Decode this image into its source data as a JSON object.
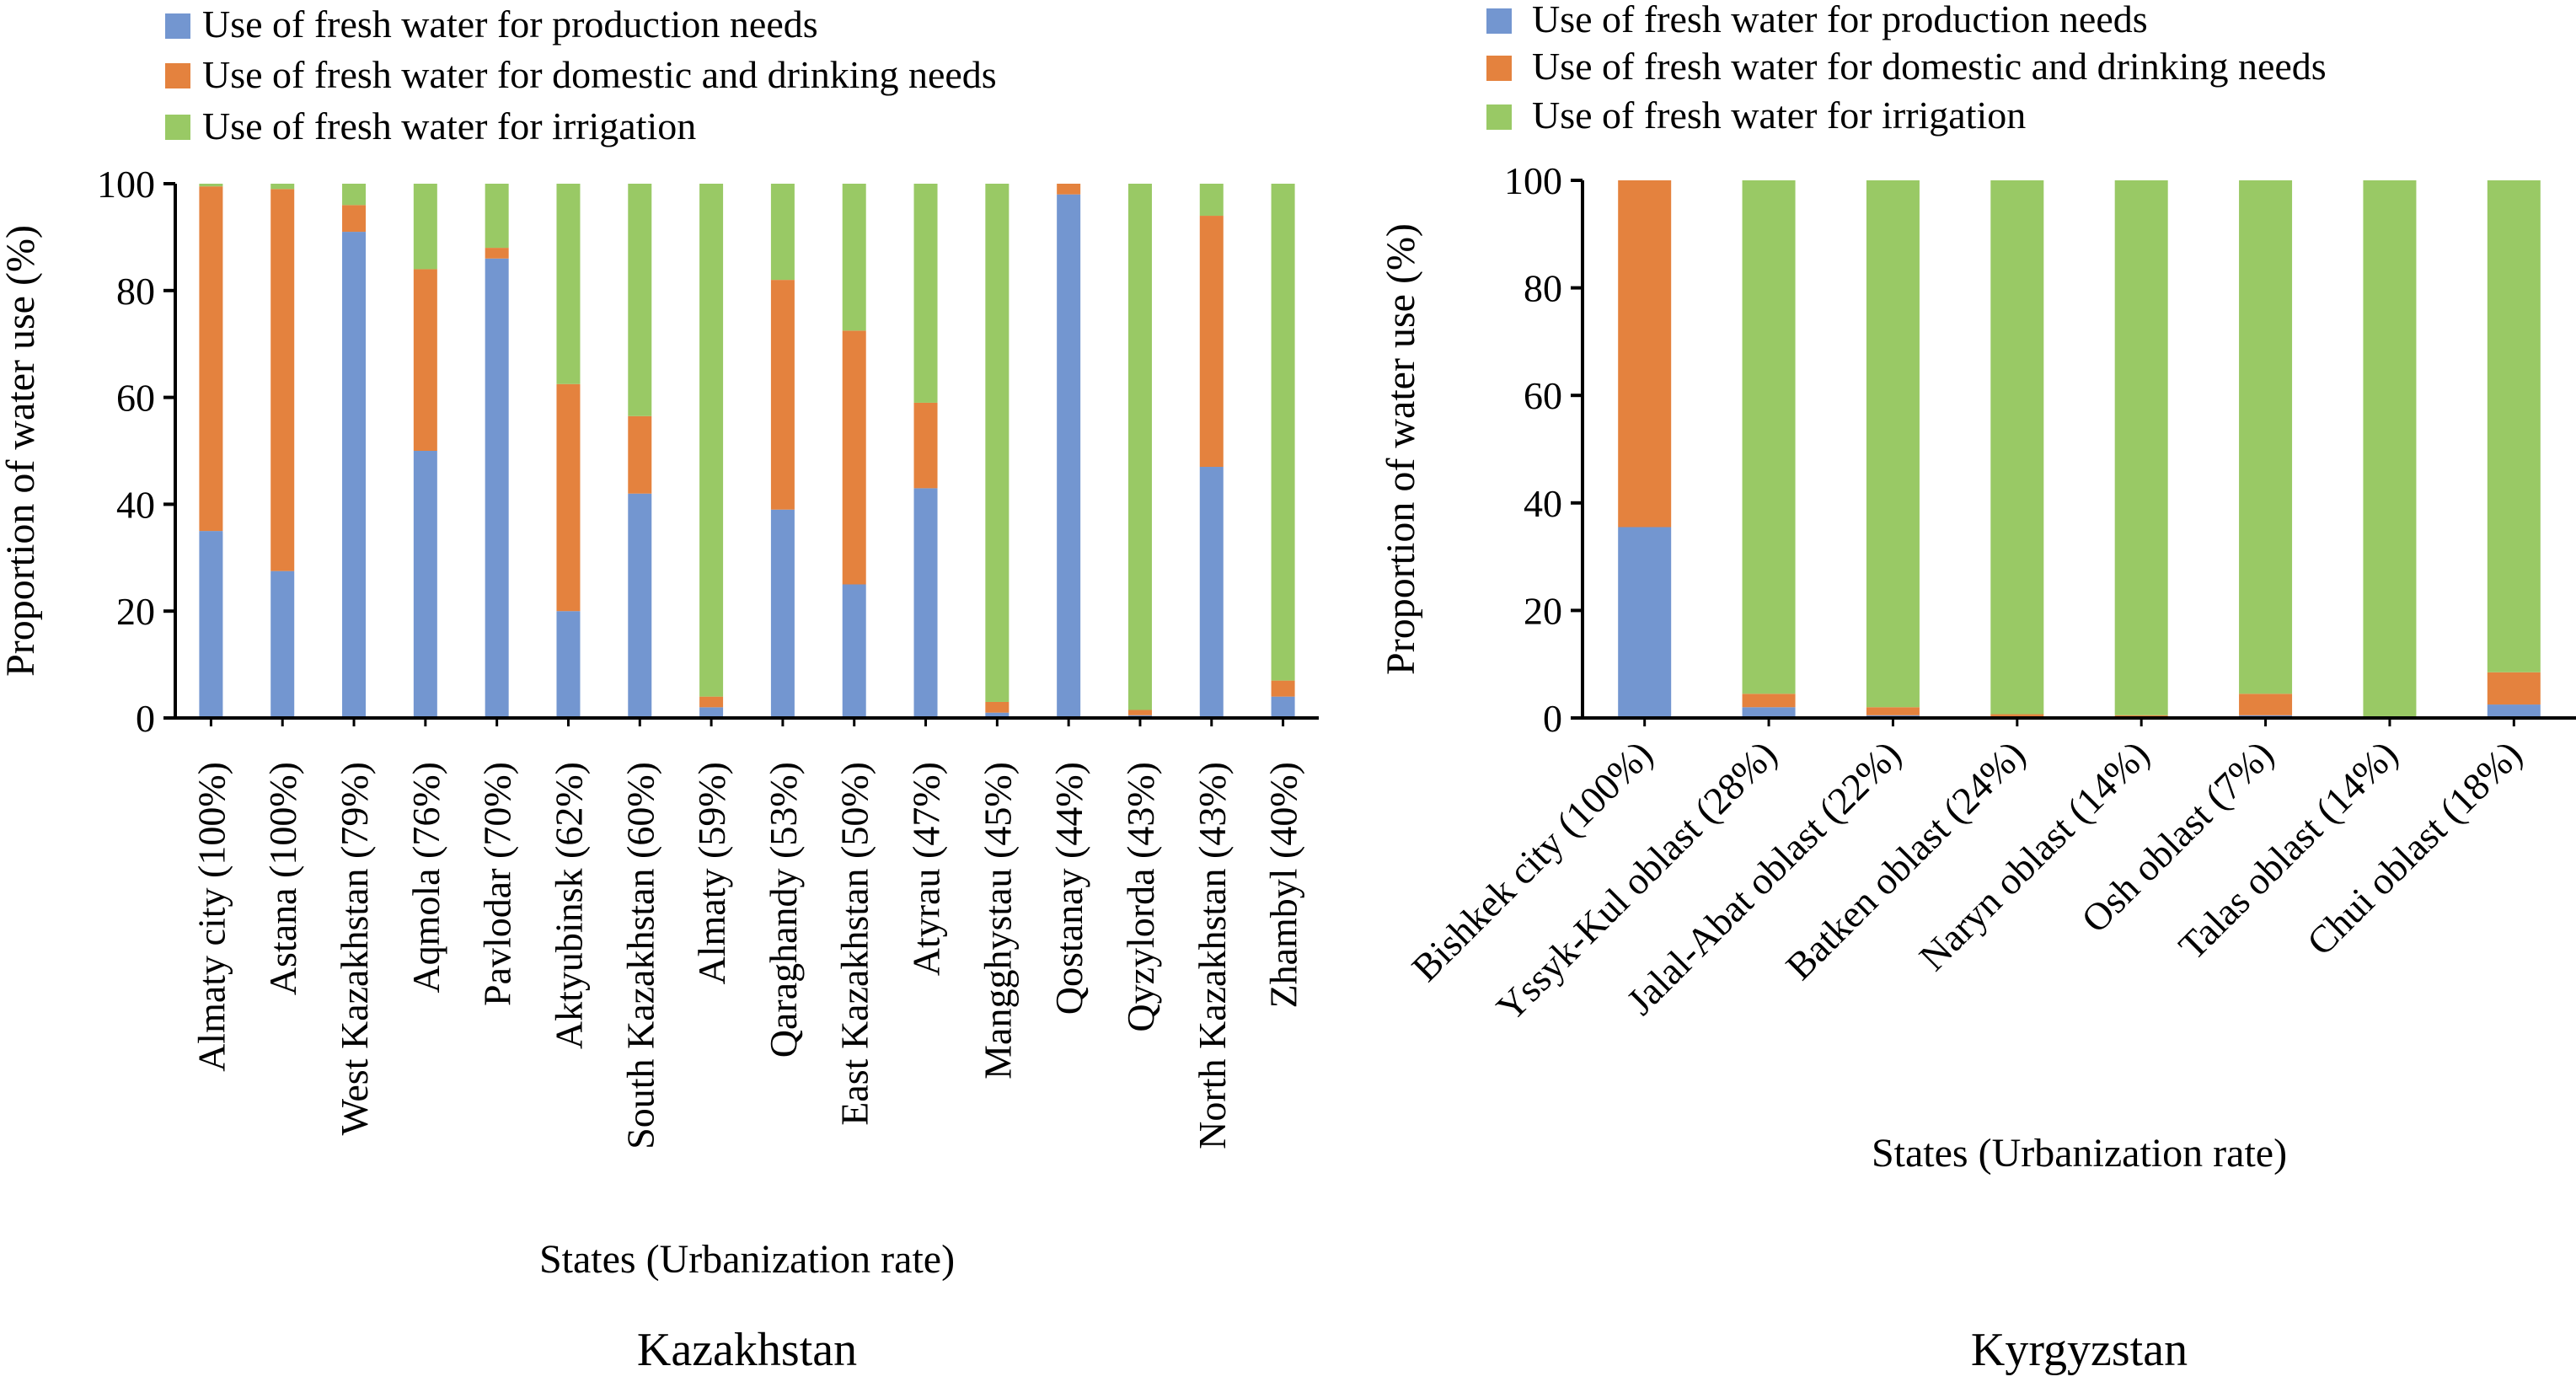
{
  "colors": {
    "production": "#7396d0",
    "domestic": "#e4823e",
    "irrigation": "#99c965",
    "axis": "#000000"
  },
  "legend": {
    "production": "Use of fresh water for production needs",
    "domestic": "Use of fresh water for domestic and drinking needs",
    "irrigation": "Use of fresh water for irrigation"
  },
  "chart_data": [
    {
      "type": "bar",
      "stacked": true,
      "title": "Kazakhstan",
      "xlabel": "States (Urbanization rate)",
      "ylabel": "Proportion of water use (%)",
      "ylim": [
        0,
        100
      ],
      "yticks": [
        0,
        20,
        40,
        60,
        80,
        100
      ],
      "legend_position": "top",
      "categories": [
        "Almaty city (100%)",
        "Astana (100%)",
        "West Kazakhstan (79%)",
        "Aqmola (76%)",
        "Pavlodar (70%)",
        "Aktyubinsk (62%)",
        "South Kazakhstan (60%)",
        "Almaty (59%)",
        "Qaraghandy (53%)",
        "East Kazakhstan (50%)",
        "Atyrau (47%)",
        "Mangghystau (45%)",
        "Qostanay (44%)",
        "Qyzylorda (43%)",
        "North Kazakhstan (43%)",
        "Zhambyl (40%)"
      ],
      "series": [
        {
          "name": "Use of fresh water for production needs",
          "values": [
            35,
            27.5,
            91,
            50,
            86,
            20,
            42,
            2,
            39,
            25,
            43,
            1,
            98,
            0.5,
            47,
            4
          ]
        },
        {
          "name": "Use of fresh water for domestic and drinking needs",
          "values": [
            64.5,
            71.5,
            5,
            34,
            2,
            42.5,
            14.5,
            2,
            43,
            47.5,
            16,
            2,
            2,
            1,
            47,
            3
          ]
        },
        {
          "name": "Use of fresh water for irrigation",
          "values": [
            0.5,
            1,
            4,
            16,
            12,
            37.5,
            43.5,
            96,
            18,
            27.5,
            41,
            97,
            0,
            98.5,
            6,
            93
          ]
        }
      ]
    },
    {
      "type": "bar",
      "stacked": true,
      "title": "Kyrgyzstan",
      "xlabel": "States (Urbanization rate)",
      "ylabel": "Proportion of water use (%)",
      "ylim": [
        0,
        100
      ],
      "yticks": [
        0,
        20,
        40,
        60,
        80,
        100
      ],
      "legend_position": "top",
      "categories": [
        "Bishkek city (100%)",
        "Yssyk-Kul oblast (28%)",
        "Jalal-Abat oblast (22%)",
        "Batken oblast (24%)",
        "Naryn oblast (14%)",
        "Osh oblast (7%)",
        "Talas oblast (14%)",
        "Chui oblast (18%)"
      ],
      "series": [
        {
          "name": "Use of fresh water for production needs",
          "values": [
            35.5,
            2,
            0.5,
            0.2,
            0.2,
            0.5,
            0,
            2.5
          ]
        },
        {
          "name": "Use of fresh water for domestic and drinking needs",
          "values": [
            64.5,
            2.5,
            1.5,
            0.5,
            0.3,
            4,
            0.2,
            6
          ]
        },
        {
          "name": "Use of fresh water for irrigation",
          "values": [
            0,
            95.5,
            98,
            99.3,
            99.5,
            95.5,
            99.8,
            91.5
          ]
        }
      ]
    }
  ]
}
